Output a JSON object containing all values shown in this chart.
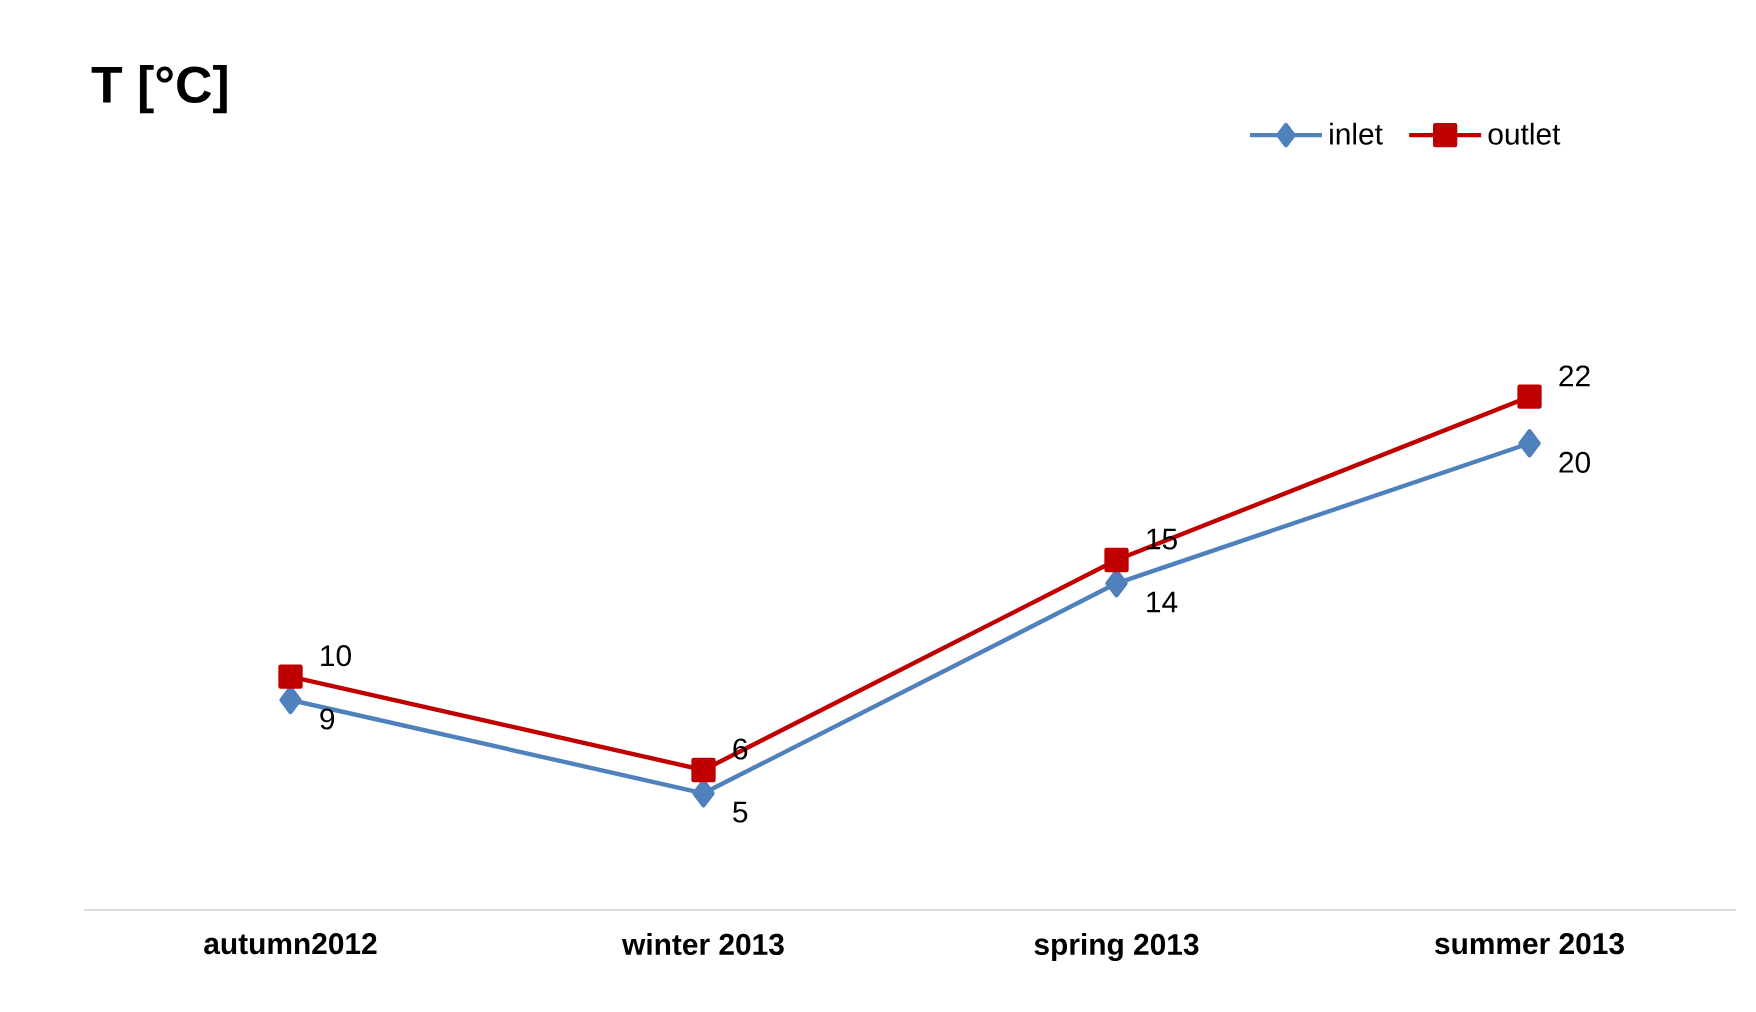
{
  "chart_data": {
    "type": "line",
    "title": "T  [°C]",
    "categories": [
      "autumn2012",
      "winter 2013",
      "spring 2013",
      "summer 2013"
    ],
    "series": [
      {
        "name": "inlet",
        "color": "#4f81bd",
        "marker": "diamond",
        "values": [
          9,
          5,
          14,
          20
        ]
      },
      {
        "name": "outlet",
        "color": "#c00000",
        "marker": "square",
        "values": [
          10,
          6,
          15,
          22
        ]
      }
    ],
    "data_labels": true,
    "legend": "top right",
    "tick_labels": "x"
  }
}
